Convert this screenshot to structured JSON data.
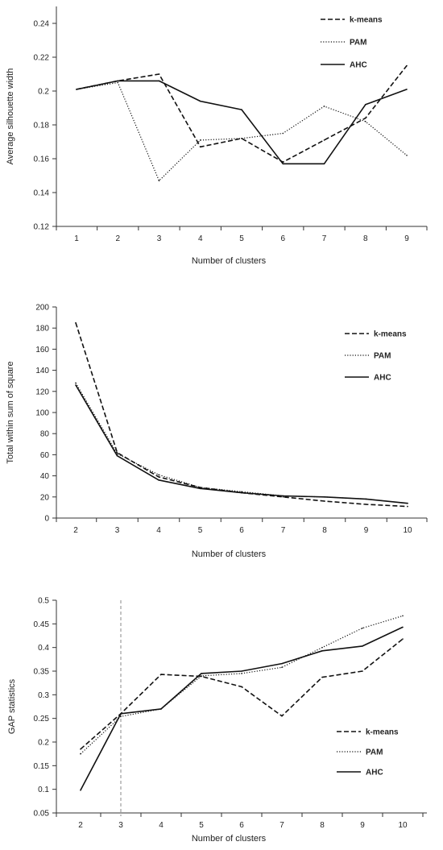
{
  "chart_data": [
    {
      "type": "line",
      "xlabel": "Number of clusters",
      "ylabel": "Average silhouette width",
      "x": [
        1,
        2,
        3,
        4,
        5,
        6,
        7,
        8,
        9
      ],
      "ylim": [
        0.12,
        0.25
      ],
      "yticks": [
        0.12,
        0.14,
        0.16,
        0.18,
        0.2,
        0.22,
        0.24
      ],
      "ytick_labels": [
        "0.12",
        "0.14",
        "0.16",
        "0.18",
        "0.2",
        "0.22",
        "0.24"
      ],
      "grid": false,
      "legend_position": "top-right",
      "series": [
        {
          "name": "k-means",
          "style": "dashed",
          "values": [
            0.201,
            0.206,
            0.21,
            0.167,
            0.172,
            0.158,
            0.171,
            0.184,
            0.215
          ]
        },
        {
          "name": "PAM",
          "style": "dotted",
          "values": [
            0.201,
            0.205,
            0.147,
            0.171,
            0.172,
            0.175,
            0.191,
            0.182,
            0.162
          ]
        },
        {
          "name": "AHC",
          "style": "solid",
          "values": [
            0.201,
            0.206,
            0.206,
            0.194,
            0.189,
            0.157,
            0.157,
            0.192,
            0.201
          ]
        }
      ]
    },
    {
      "type": "line",
      "xlabel": "Number of clusters",
      "ylabel": "Total within sum of square",
      "x": [
        2,
        3,
        4,
        5,
        6,
        7,
        8,
        9,
        10
      ],
      "ylim": [
        0,
        200
      ],
      "yticks": [
        0,
        20,
        40,
        60,
        80,
        100,
        120,
        140,
        160,
        180,
        200
      ],
      "ytick_labels": [
        "0",
        "20",
        "40",
        "60",
        "80",
        "100",
        "120",
        "140",
        "160",
        "180",
        "200"
      ],
      "grid": false,
      "legend_position": "top-right",
      "series": [
        {
          "name": "k-means",
          "style": "dashed",
          "values": [
            185,
            62,
            39,
            29,
            24,
            20,
            16,
            13,
            11
          ]
        },
        {
          "name": "PAM",
          "style": "dotted",
          "values": [
            128,
            61,
            41,
            29,
            25,
            21,
            20,
            18,
            14
          ]
        },
        {
          "name": "AHC",
          "style": "solid",
          "values": [
            126,
            59,
            36,
            28,
            24,
            21,
            20,
            18,
            14
          ]
        }
      ]
    },
    {
      "type": "line",
      "xlabel": "Number of clusters",
      "ylabel": "GAP statistics",
      "x": [
        2,
        3,
        4,
        5,
        6,
        7,
        8,
        9,
        10
      ],
      "ylim": [
        0.05,
        0.5
      ],
      "yticks": [
        0.05,
        0.1,
        0.15,
        0.2,
        0.25,
        0.3,
        0.35,
        0.4,
        0.45,
        0.5
      ],
      "ytick_labels": [
        "0.05",
        "0.1",
        "0.15",
        "0.2",
        "0.25",
        "0.3",
        "0.35",
        "0.4",
        "0.45",
        "0.5"
      ],
      "grid": false,
      "legend_position": "bottom-right",
      "vline_x": 3,
      "series": [
        {
          "name": "k-means",
          "style": "dashed",
          "values": [
            0.185,
            0.26,
            0.343,
            0.339,
            0.317,
            0.255,
            0.337,
            0.35,
            0.418
          ]
        },
        {
          "name": "PAM",
          "style": "dotted",
          "values": [
            0.175,
            0.254,
            0.27,
            0.34,
            0.345,
            0.358,
            0.4,
            0.441,
            0.467
          ]
        },
        {
          "name": "AHC",
          "style": "solid",
          "values": [
            0.098,
            0.26,
            0.27,
            0.345,
            0.35,
            0.366,
            0.393,
            0.403,
            0.443
          ]
        }
      ]
    }
  ]
}
